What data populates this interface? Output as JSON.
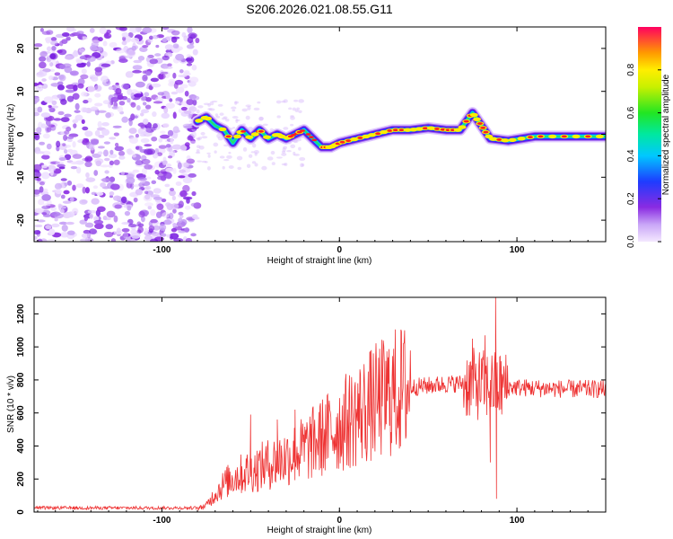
{
  "title": "S206.2026.021.08.55.G11",
  "chart_data": [
    {
      "type": "heatmap",
      "xlabel": "Height of straight line (km)",
      "ylabel": "Frequency (Hz)",
      "xlim": [
        -172,
        150
      ],
      "ylim": [
        -25,
        25
      ],
      "xticks": [
        -100,
        0,
        100
      ],
      "yticks": [
        -20,
        -10,
        0,
        10,
        20
      ],
      "noise_region_x": [
        -172,
        -80
      ],
      "ridge": [
        {
          "x": -80,
          "y": 3
        },
        {
          "x": -75,
          "y": 4
        },
        {
          "x": -70,
          "y": 2
        },
        {
          "x": -65,
          "y": 1
        },
        {
          "x": -60,
          "y": -2
        },
        {
          "x": -55,
          "y": 1
        },
        {
          "x": -50,
          "y": -1
        },
        {
          "x": -45,
          "y": 1
        },
        {
          "x": -40,
          "y": -1
        },
        {
          "x": -35,
          "y": 0
        },
        {
          "x": -30,
          "y": -1
        },
        {
          "x": -25,
          "y": 0
        },
        {
          "x": -20,
          "y": 1
        },
        {
          "x": -15,
          "y": -1
        },
        {
          "x": -10,
          "y": -3
        },
        {
          "x": -5,
          "y": -3
        },
        {
          "x": 0,
          "y": -2
        },
        {
          "x": 10,
          "y": -1
        },
        {
          "x": 20,
          "y": 0
        },
        {
          "x": 30,
          "y": 1
        },
        {
          "x": 40,
          "y": 1
        },
        {
          "x": 50,
          "y": 1.5
        },
        {
          "x": 60,
          "y": 1
        },
        {
          "x": 68,
          "y": 1
        },
        {
          "x": 75,
          "y": 5
        },
        {
          "x": 80,
          "y": 2
        },
        {
          "x": 85,
          "y": -1
        },
        {
          "x": 95,
          "y": -1.5
        },
        {
          "x": 110,
          "y": -0.5
        },
        {
          "x": 130,
          "y": -0.5
        },
        {
          "x": 150,
          "y": -0.5
        }
      ],
      "colorbar": {
        "label": "Normalized spectral amplitude",
        "range": [
          0.0,
          1.0
        ],
        "ticks": [
          "0.0",
          "0.2",
          "0.4",
          "0.6",
          "0.8"
        ]
      }
    },
    {
      "type": "line",
      "xlabel": "Height of straight line (km)",
      "ylabel": "SNR (10 * v/v)",
      "xlim": [
        -172,
        150
      ],
      "ylim": [
        0,
        1300
      ],
      "xticks": [
        -100,
        0,
        100
      ],
      "yticks": [
        0,
        200,
        400,
        600,
        800,
        1000,
        1200
      ],
      "series": [
        {
          "name": "SNR",
          "color": "#ee3333",
          "envelope": [
            {
              "x": -172,
              "y": 20
            },
            {
              "x": -80,
              "y": 20
            },
            {
              "x": -75,
              "y": 40
            },
            {
              "x": -70,
              "y": 110
            },
            {
              "x": -65,
              "y": 170
            },
            {
              "x": -60,
              "y": 210
            },
            {
              "x": -50,
              "y": 250
            },
            {
              "x": -40,
              "y": 290
            },
            {
              "x": -30,
              "y": 330
            },
            {
              "x": -20,
              "y": 380
            },
            {
              "x": -10,
              "y": 450
            },
            {
              "x": 0,
              "y": 520
            },
            {
              "x": 10,
              "y": 590
            },
            {
              "x": 20,
              "y": 660
            },
            {
              "x": 30,
              "y": 720
            },
            {
              "x": 40,
              "y": 755
            },
            {
              "x": 60,
              "y": 775
            },
            {
              "x": 70,
              "y": 780
            },
            {
              "x": 80,
              "y": 770
            },
            {
              "x": 90,
              "y": 760
            },
            {
              "x": 110,
              "y": 750
            },
            {
              "x": 130,
              "y": 745
            },
            {
              "x": 150,
              "y": 745
            }
          ],
          "spikes": [
            {
              "x": -50,
              "y": 590
            },
            {
              "x": -35,
              "y": 560
            },
            {
              "x": -25,
              "y": 620
            },
            {
              "x": 75,
              "y": 1050
            },
            {
              "x": 82,
              "y": 1070
            },
            {
              "x": 88,
              "y": 1310
            },
            {
              "x": 88.5,
              "y": 80
            },
            {
              "x": 85,
              "y": 300
            }
          ]
        }
      ]
    }
  ]
}
